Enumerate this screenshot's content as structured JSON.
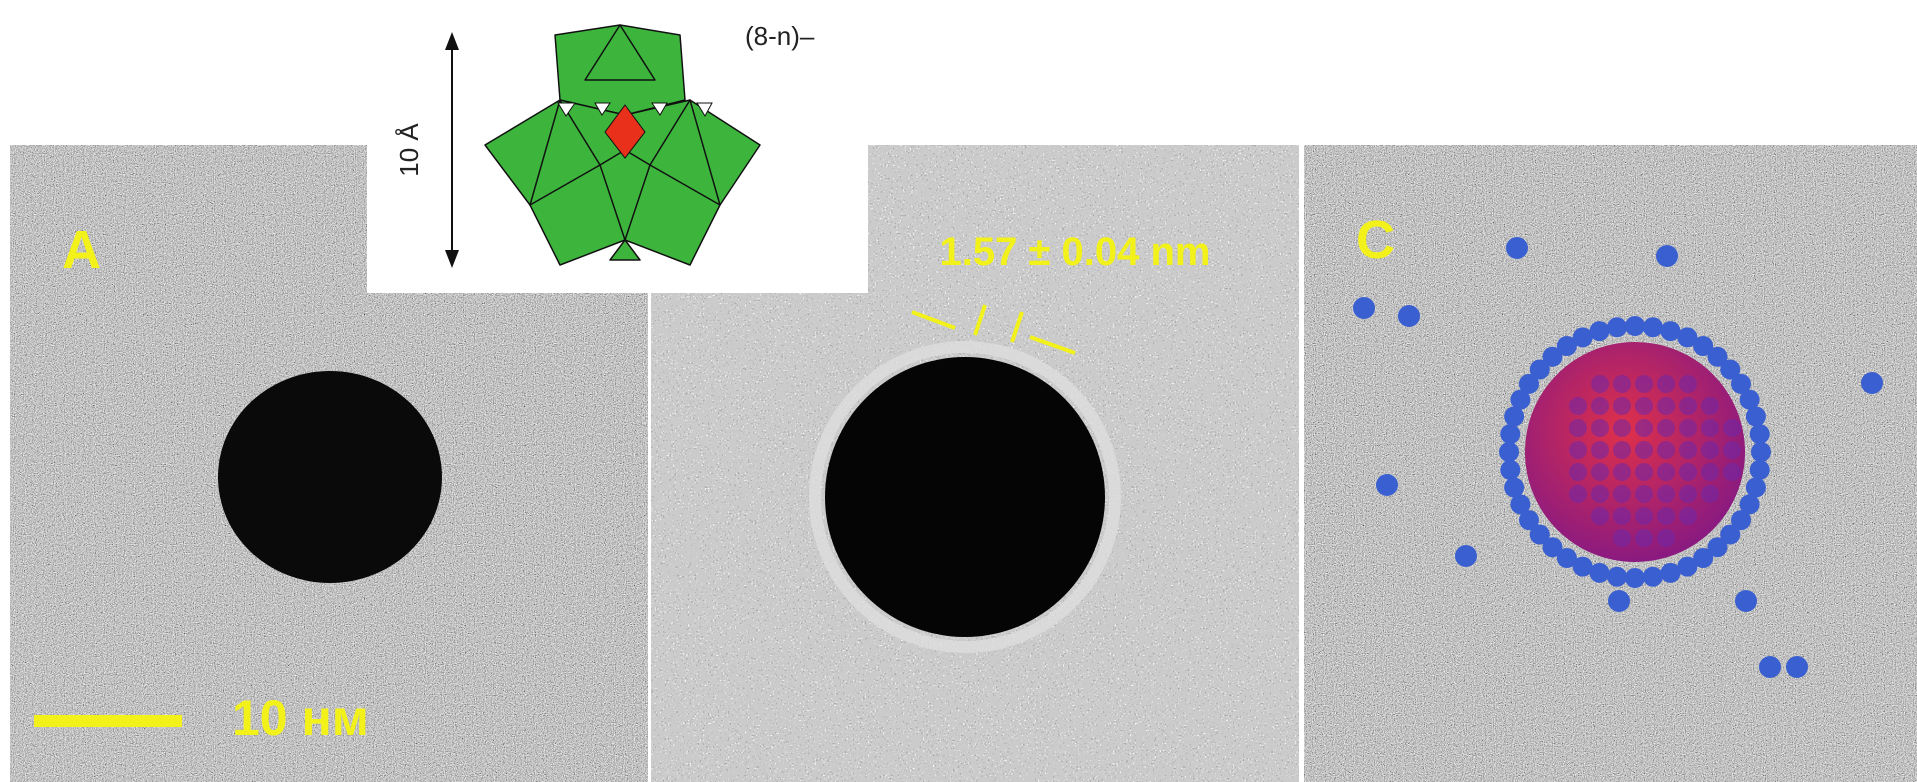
{
  "inset": {
    "charge": "(8-n)–",
    "size_label": "10 Å"
  },
  "panels": [
    {
      "label": "A",
      "scale_label": "10 нм"
    },
    {
      "measurement": "1.57 ± 0.04 nm"
    },
    {
      "label": "C"
    }
  ]
}
